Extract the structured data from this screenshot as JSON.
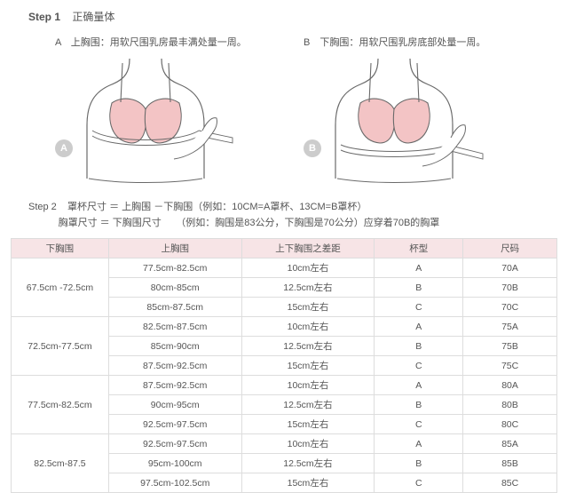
{
  "step1": {
    "label": "Step 1",
    "title": "正确量体",
    "a_prefix": "A　上胸围：",
    "a_text": "用软尺围乳房最丰满处量一周。",
    "b_prefix": "B　下胸围：",
    "b_text": "用软尺围乳房底部处量一周。",
    "badge_a": "A",
    "badge_b": "B"
  },
  "step2": {
    "label": "Step 2",
    "line1": "罩杯尺寸 ＝ 上胸围 －下胸围（例如：10CM=A罩杯、13CM=B罩杯）",
    "line2": "胸罩尺寸 ＝ 下胸围尺寸　　（例如：胸围是83公分，下胸围是70公分）应穿着70B的胸罩"
  },
  "table": {
    "headers": [
      "下胸围",
      "上胸围",
      "上下胸围之差距",
      "杯型",
      "尺码"
    ],
    "groups": [
      {
        "under": "67.5cm -72.5cm",
        "rows": [
          {
            "over": "77.5cm-82.5cm",
            "diff": "10cm左右",
            "cup": "A",
            "size": "70A"
          },
          {
            "over": "80cm-85cm",
            "diff": "12.5cm左右",
            "cup": "B",
            "size": "70B"
          },
          {
            "over": "85cm-87.5cm",
            "diff": "15cm左右",
            "cup": "C",
            "size": "70C"
          }
        ]
      },
      {
        "under": "72.5cm-77.5cm",
        "rows": [
          {
            "over": "82.5cm-87.5cm",
            "diff": "10cm左右",
            "cup": "A",
            "size": "75A"
          },
          {
            "over": "85cm-90cm",
            "diff": "12.5cm左右",
            "cup": "B",
            "size": "75B"
          },
          {
            "over": "87.5cm-92.5cm",
            "diff": "15cm左右",
            "cup": "C",
            "size": "75C"
          }
        ]
      },
      {
        "under": "77.5cm-82.5cm",
        "rows": [
          {
            "over": "87.5cm-92.5cm",
            "diff": "10cm左右",
            "cup": "A",
            "size": "80A"
          },
          {
            "over": "90cm-95cm",
            "diff": "12.5cm左右",
            "cup": "B",
            "size": "80B"
          },
          {
            "over": "92.5cm-97.5cm",
            "diff": "15cm左右",
            "cup": "C",
            "size": "80C"
          }
        ]
      },
      {
        "under": "82.5cm-87.5",
        "rows": [
          {
            "over": "92.5cm-97.5cm",
            "diff": "10cm左右",
            "cup": "A",
            "size": "85A"
          },
          {
            "over": "95cm-100cm",
            "diff": "12.5cm左右",
            "cup": "B",
            "size": "85B"
          },
          {
            "over": "97.5cm-102.5cm",
            "diff": "15cm左右",
            "cup": "C",
            "size": "85C"
          }
        ]
      }
    ]
  },
  "colors": {
    "skin": "#f3c4c5",
    "line": "#6a6a6a",
    "tape": "#e8e8e8",
    "header_bg": "#f7e4e6",
    "border": "#dddddd"
  }
}
